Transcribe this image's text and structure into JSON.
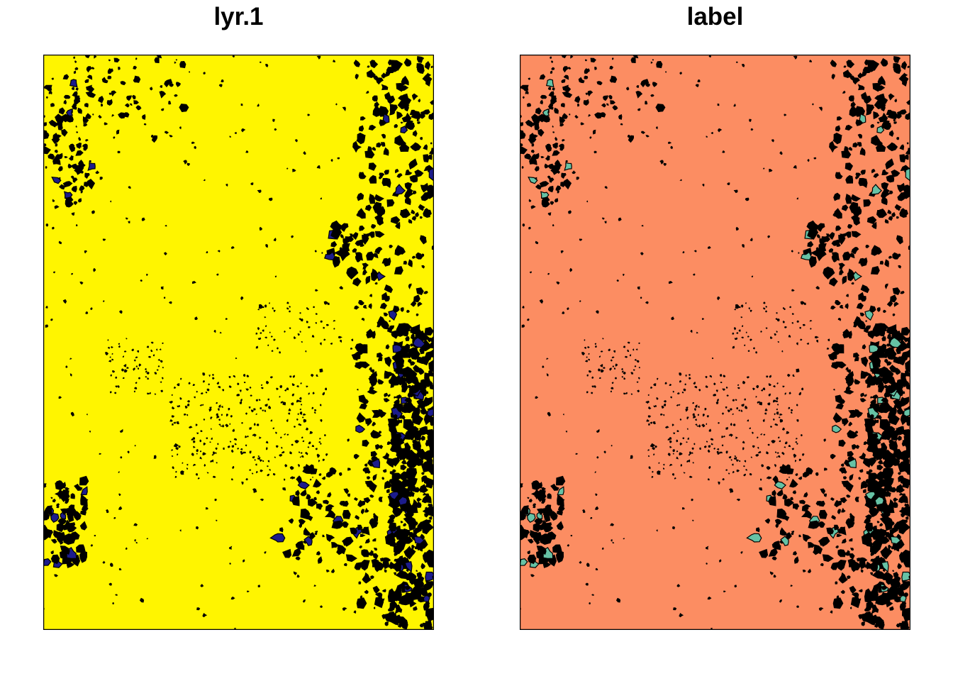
{
  "panels": [
    {
      "title": "lyr.1",
      "colors": {
        "background": "#fff500",
        "patch": "#1c1c8c",
        "outline": "#000000"
      }
    },
    {
      "title": "label",
      "colors": {
        "background": "#fc8d62",
        "patch": "#66c2a5",
        "outline": "#000000"
      }
    }
  ]
}
